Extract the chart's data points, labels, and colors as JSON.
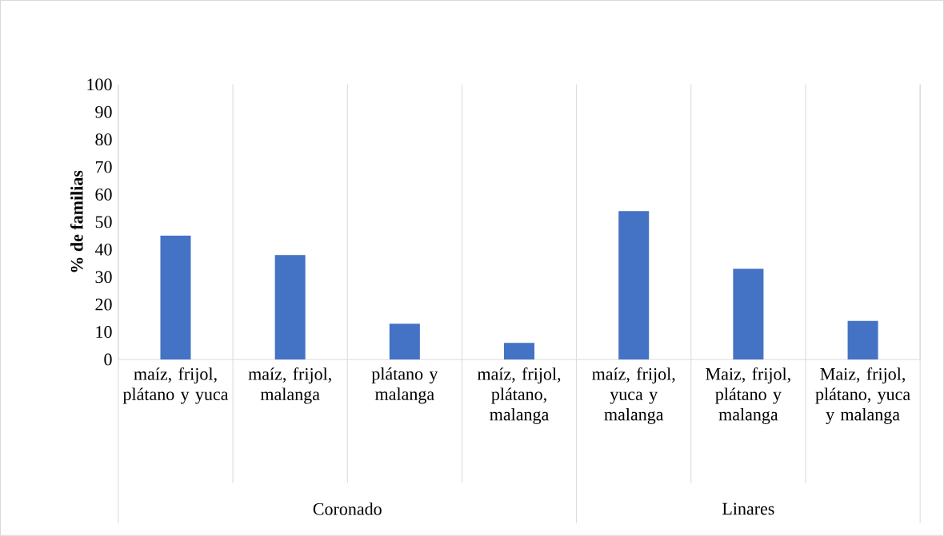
{
  "chart_data": {
    "type": "bar",
    "ylabel": "% de familias",
    "categories": [
      "maíz, frijol, plátano y yuca",
      "maíz, frijol, malanga",
      "plátano y malanga",
      "maíz, frijol, plátano, malanga",
      "maíz, frijol, yuca y malanga",
      "Maiz, frijol, plátano y malanga",
      "Maiz, frijol, plátano, yuca y malanga"
    ],
    "values": [
      45,
      38,
      13,
      6,
      54,
      33,
      14
    ],
    "color": "#4472c4",
    "ylim": [
      0,
      100
    ],
    "yticks": [
      0,
      10,
      20,
      30,
      40,
      50,
      60,
      70,
      80,
      90,
      100
    ],
    "grid": "x",
    "annotations": [
      "Coronado",
      "Linares"
    ]
  }
}
